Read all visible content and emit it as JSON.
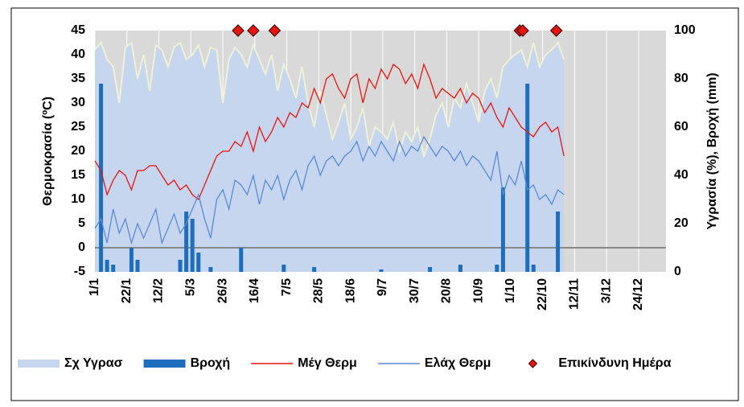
{
  "chart_data": {
    "type": "combo",
    "y_label": "Θερμοκρασία (ºC)",
    "y2_label": "Υγρασία (%), Βροχή (mm)",
    "xlim": [
      0,
      375
    ],
    "xticks": [
      {
        "value": 0,
        "label": "1/1"
      },
      {
        "value": 21,
        "label": "22/1"
      },
      {
        "value": 42,
        "label": "12/2"
      },
      {
        "value": 63,
        "label": "5/3"
      },
      {
        "value": 84,
        "label": "26/3"
      },
      {
        "value": 105,
        "label": "16/4"
      },
      {
        "value": 126,
        "label": "7/5"
      },
      {
        "value": 147,
        "label": "28/5"
      },
      {
        "value": 168,
        "label": "18/6"
      },
      {
        "value": 189,
        "label": "9/7"
      },
      {
        "value": 210,
        "label": "30/7"
      },
      {
        "value": 231,
        "label": "20/8"
      },
      {
        "value": 252,
        "label": "10/9"
      },
      {
        "value": 273,
        "label": "1/10"
      },
      {
        "value": 294,
        "label": "22/10"
      },
      {
        "value": 315,
        "label": "12/11"
      },
      {
        "value": 336,
        "label": "3/12"
      },
      {
        "value": 357,
        "label": "24/12"
      }
    ],
    "ylim": [
      -5,
      45
    ],
    "yticks": [
      -5,
      0,
      5,
      10,
      15,
      20,
      25,
      30,
      35,
      40,
      45
    ],
    "y2lim": [
      0,
      100
    ],
    "y2ticks": [
      0,
      20,
      40,
      60,
      80,
      100
    ],
    "zero_line": true,
    "x": [
      0,
      4,
      8,
      12,
      16,
      20,
      24,
      28,
      32,
      36,
      40,
      44,
      48,
      52,
      56,
      60,
      64,
      68,
      72,
      76,
      80,
      84,
      88,
      92,
      96,
      100,
      104,
      108,
      112,
      116,
      120,
      124,
      128,
      132,
      136,
      140,
      144,
      148,
      152,
      156,
      160,
      164,
      168,
      172,
      176,
      180,
      184,
      188,
      192,
      196,
      200,
      204,
      208,
      212,
      216,
      220,
      224,
      228,
      232,
      236,
      240,
      244,
      248,
      252,
      256,
      260,
      264,
      268,
      272,
      276,
      280,
      284,
      288,
      292,
      296,
      300,
      304,
      308
    ],
    "series": [
      {
        "name": "Σχ Υγρασ",
        "kind": "area",
        "axis": "y2",
        "color": "#c6d6ee",
        "edge_color": "#eef1d8",
        "values": [
          92,
          95,
          88,
          85,
          70,
          93,
          95,
          80,
          90,
          75,
          94,
          92,
          85,
          93,
          95,
          88,
          90,
          94,
          85,
          93,
          92,
          70,
          88,
          93,
          90,
          85,
          94,
          88,
          82,
          90,
          75,
          86,
          80,
          72,
          85,
          70,
          60,
          75,
          65,
          55,
          62,
          70,
          55,
          60,
          68,
          52,
          60,
          58,
          55,
          62,
          50,
          58,
          54,
          60,
          48,
          55,
          65,
          70,
          60,
          72,
          68,
          78,
          70,
          62,
          75,
          80,
          72,
          85,
          88,
          90,
          92,
          85,
          95,
          85,
          90,
          92,
          95,
          88
        ]
      },
      {
        "name": "Βροχή",
        "kind": "bar",
        "axis": "y2",
        "color": "#1f6dbd",
        "values": [
          0,
          78,
          5,
          3,
          0,
          0,
          10,
          5,
          0,
          0,
          0,
          0,
          0,
          0,
          5,
          25,
          22,
          8,
          0,
          2,
          0,
          0,
          0,
          0,
          10,
          0,
          0,
          0,
          0,
          0,
          0,
          3,
          0,
          0,
          0,
          0,
          2,
          0,
          0,
          0,
          0,
          0,
          0,
          0,
          0,
          0,
          0,
          1,
          0,
          0,
          0,
          0,
          0,
          0,
          0,
          2,
          0,
          0,
          0,
          0,
          3,
          0,
          0,
          0,
          0,
          0,
          3,
          35,
          0,
          0,
          0,
          78,
          3,
          0,
          0,
          0,
          25,
          0
        ]
      },
      {
        "name": "Μέγ Θερμ",
        "kind": "line",
        "axis": "y",
        "color": "#e8140f",
        "values": [
          18,
          16,
          11,
          14,
          16,
          15,
          12,
          16,
          16,
          17,
          17,
          15,
          13,
          14,
          12,
          13,
          11,
          10,
          13,
          16,
          19,
          20,
          20,
          22,
          21,
          24,
          20,
          25,
          22,
          24,
          27,
          25,
          28,
          27,
          30,
          29,
          33,
          30,
          35,
          36,
          33,
          31,
          35,
          36,
          30,
          35,
          33,
          37,
          35,
          38,
          37,
          34,
          36,
          33,
          38,
          35,
          31,
          33,
          32,
          31,
          33,
          30,
          32,
          31,
          28,
          30,
          27,
          25,
          29,
          27,
          25,
          24,
          23,
          25,
          26,
          24,
          25,
          19
        ]
      },
      {
        "name": "Ελάχ Θερμ",
        "kind": "line",
        "axis": "y",
        "color": "#5a8ad6",
        "values": [
          4,
          6,
          1,
          8,
          3,
          6,
          1,
          5,
          2,
          5,
          8,
          1,
          4,
          7,
          3,
          5,
          8,
          11,
          6,
          2,
          10,
          12,
          8,
          14,
          13,
          11,
          15,
          9,
          14,
          12,
          15,
          10,
          14,
          16,
          12,
          17,
          19,
          15,
          18,
          19,
          17,
          19,
          20,
          22,
          18,
          21,
          19,
          22,
          20,
          18,
          22,
          19,
          21,
          20,
          23,
          21,
          19,
          21,
          20,
          18,
          20,
          17,
          19,
          18,
          16,
          14,
          20,
          11,
          15,
          13,
          18,
          12,
          13,
          10,
          11,
          9,
          12,
          11
        ]
      },
      {
        "name": "Επικίνδυνη Ημέρα",
        "kind": "scatter",
        "axis": "y",
        "color": "#e8140f",
        "x": [
          94,
          104,
          118,
          279,
          281,
          303
        ],
        "values": [
          45,
          45,
          45,
          45,
          45,
          45
        ]
      }
    ]
  }
}
